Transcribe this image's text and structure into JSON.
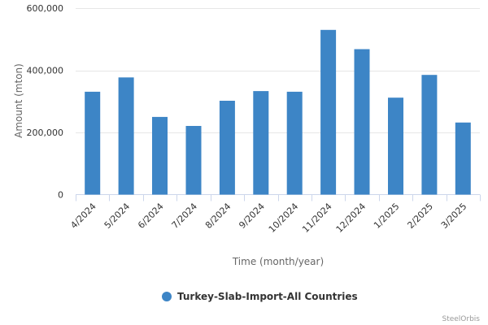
{
  "chart_data": {
    "type": "bar",
    "categories": [
      "4/2024",
      "5/2024",
      "6/2024",
      "7/2024",
      "8/2024",
      "9/2024",
      "10/2024",
      "11/2024",
      "12/2024",
      "1/2025",
      "2/2025",
      "3/2025"
    ],
    "series": [
      {
        "name": "Turkey-Slab-Import-All Countries",
        "color": "#3d85c6",
        "values": [
          331000,
          377000,
          250000,
          221000,
          302000,
          333000,
          331000,
          530000,
          468000,
          312000,
          385000,
          232000
        ]
      }
    ],
    "xlabel": "Time (month/year)",
    "ylabel": "Amount (mton)",
    "ylim": [
      0,
      600000
    ],
    "yticks": [
      0,
      200000,
      400000,
      600000
    ],
    "ytick_labels": [
      "0",
      "200,000",
      "400,000",
      "600,000"
    ],
    "grid": true,
    "legend_position": "bottom-center"
  },
  "credit": "SteelOrbis"
}
